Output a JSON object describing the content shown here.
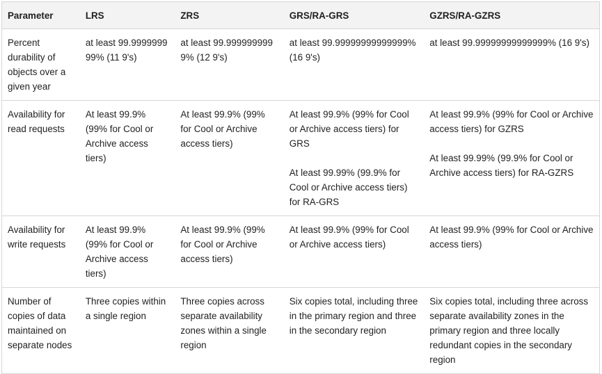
{
  "table": {
    "headers": [
      "Parameter",
      "LRS",
      "ZRS",
      "GRS/RA-GRS",
      "GZRS/RA-GZRS"
    ],
    "rows": [
      {
        "param": "Percent durability of objects over a given year",
        "lrs": "at least 99.999999999% (11 9's)",
        "zrs": "at least 99.9999999999% (12 9's)",
        "grs": "at least 99.99999999999999% (16 9's)",
        "gzrs": "at least 99.99999999999999% (16 9's)"
      },
      {
        "param": "Availability for read requests",
        "lrs": "At least 99.9% (99% for Cool or Archive access tiers)",
        "zrs": "At least 99.9% (99% for Cool or Archive access tiers)",
        "grs_p1": "At least 99.9% (99% for Cool or Archive access tiers) for GRS",
        "grs_p2": "At least 99.99% (99.9% for Cool or Archive access tiers) for RA-GRS",
        "gzrs_p1": "At least 99.9% (99% for Cool or Archive access tiers) for GZRS",
        "gzrs_p2": "At least 99.99% (99.9% for Cool or Archive access tiers) for RA-GZRS"
      },
      {
        "param": "Availability for write requests",
        "lrs": "At least 99.9% (99% for Cool or Archive access tiers)",
        "zrs": "At least 99.9% (99% for Cool or Archive access tiers)",
        "grs": "At least 99.9% (99% for Cool or Archive access tiers)",
        "gzrs": "At least 99.9% (99% for Cool or Archive access tiers)"
      },
      {
        "param": "Number of copies of data maintained on separate nodes",
        "lrs": "Three copies within a single region",
        "zrs": "Three copies across separate availability zones within a single region",
        "grs": "Six copies total, including three in the primary region and three in the secondary region",
        "gzrs": "Six copies total, including three across separate availability zones in the primary region and three locally redundant copies in the secondary region"
      }
    ]
  }
}
